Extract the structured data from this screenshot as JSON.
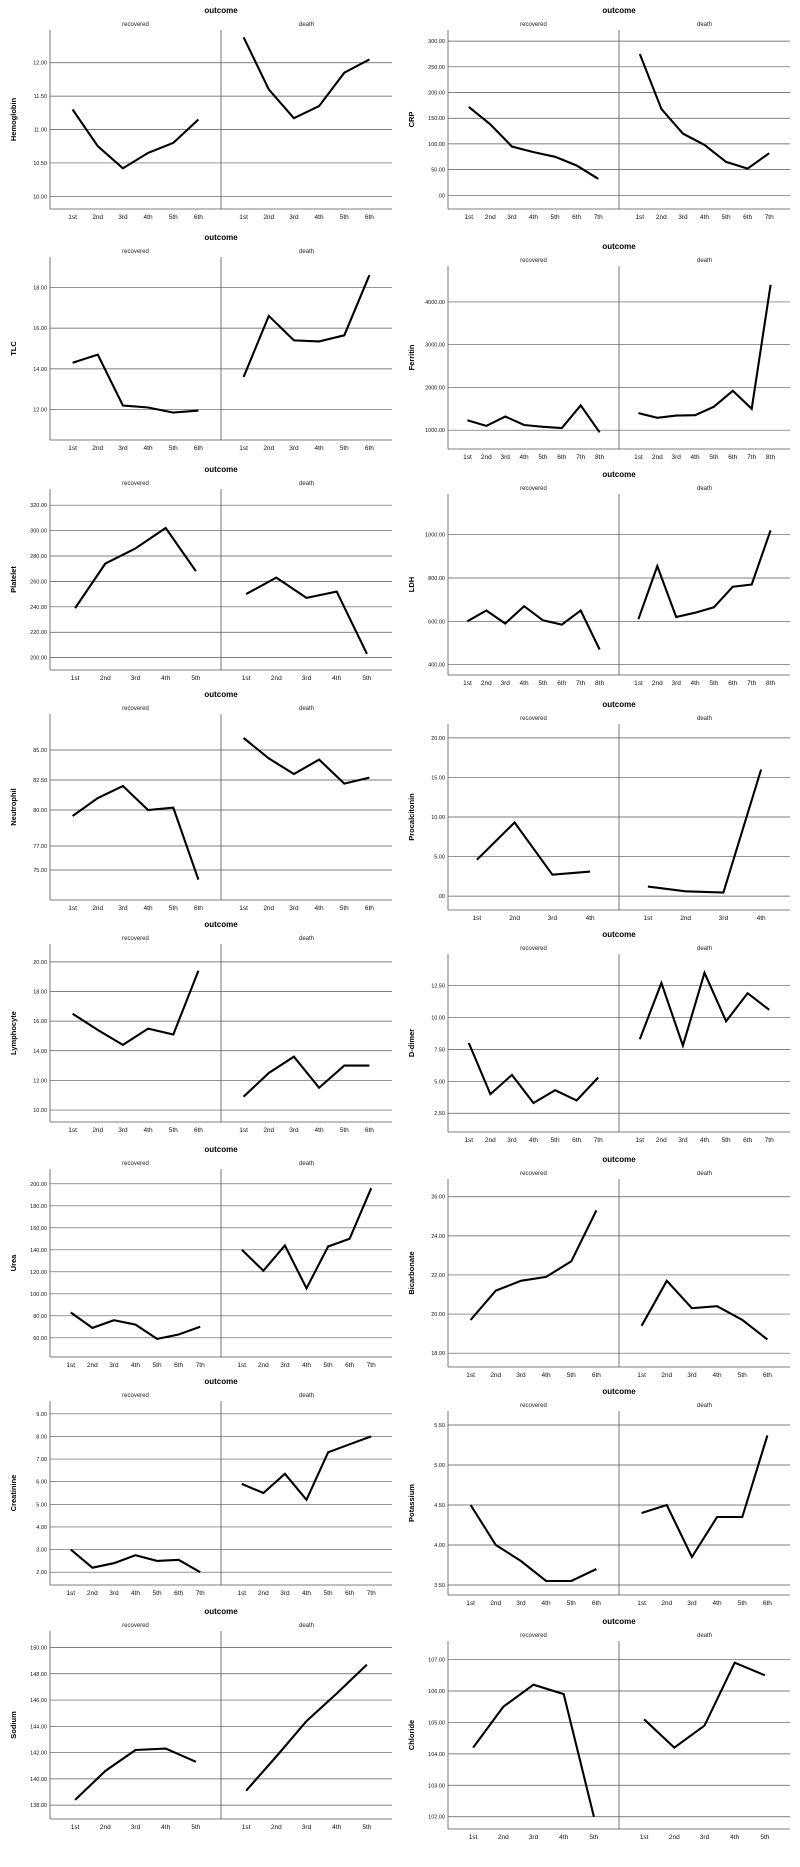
{
  "chart_data": [
    {
      "type": "line",
      "title": "outcome",
      "ylabel": "Hemoglobin",
      "panels": [
        "recovered",
        "death"
      ],
      "categories": [
        "1st",
        "2nd",
        "3rd",
        "4th",
        "5th",
        "6th"
      ],
      "ylim": [
        9.9,
        12.4
      ],
      "yticks": [
        10.0,
        10.5,
        11.0,
        11.5,
        12.0
      ],
      "ytick_labels": [
        "10.00",
        "10.50",
        "11.00",
        "11.50",
        "12.00"
      ],
      "series": [
        {
          "name": "recovered",
          "values": [
            11.3,
            10.75,
            10.42,
            10.65,
            10.8,
            11.15
          ]
        },
        {
          "name": "death",
          "values": [
            12.38,
            11.6,
            11.17,
            11.35,
            11.85,
            12.05
          ]
        }
      ]
    },
    {
      "type": "line",
      "title": "outcome",
      "ylabel": "CRP",
      "panels": [
        "recovered",
        "death"
      ],
      "categories": [
        "1st",
        "2nd",
        "3rd",
        "4th",
        "5th",
        "6th",
        "7th"
      ],
      "ylim": [
        -15,
        310
      ],
      "yticks": [
        0,
        50,
        100,
        150,
        200,
        250,
        300
      ],
      "ytick_labels": [
        ".00",
        "50.00",
        "100.00",
        "150.00",
        "200.00",
        "250.00",
        "300.00"
      ],
      "series": [
        {
          "name": "recovered",
          "values": [
            172,
            138,
            95,
            84,
            75,
            58,
            32
          ]
        },
        {
          "name": "death",
          "values": [
            275,
            168,
            120,
            98,
            65,
            52,
            82
          ]
        }
      ]
    },
    {
      "type": "line",
      "title": "outcome",
      "ylabel": "TLC",
      "panels": [
        "recovered",
        "death"
      ],
      "categories": [
        "1st",
        "2nd",
        "3rd",
        "4th",
        "5th",
        "6th"
      ],
      "ylim": [
        10.8,
        19.2
      ],
      "yticks": [
        12,
        14,
        16,
        18
      ],
      "ytick_labels": [
        "12.00",
        "14.00",
        "16.00",
        "18.00"
      ],
      "series": [
        {
          "name": "recovered",
          "values": [
            14.3,
            14.7,
            12.2,
            12.1,
            11.85,
            11.95
          ]
        },
        {
          "name": "death",
          "values": [
            13.6,
            16.6,
            15.4,
            15.35,
            15.65,
            18.6
          ]
        }
      ]
    },
    {
      "type": "line",
      "title": "outcome",
      "ylabel": "Ferritin",
      "panels": [
        "recovered",
        "death"
      ],
      "categories": [
        "1st",
        "2nd",
        "3rd",
        "4th",
        "5th",
        "6th",
        "7th",
        "8th"
      ],
      "ylim": [
        700,
        4700
      ],
      "yticks": [
        1000,
        2000,
        3000,
        4000
      ],
      "ytick_labels": [
        "1000.00",
        "2000.00",
        "3000.00",
        "4000.00"
      ],
      "series": [
        {
          "name": "recovered",
          "values": [
            1230,
            1100,
            1320,
            1120,
            1080,
            1050,
            1580,
            950
          ]
        },
        {
          "name": "death",
          "values": [
            1400,
            1290,
            1340,
            1350,
            1550,
            1920,
            1500,
            4400
          ]
        }
      ]
    },
    {
      "type": "line",
      "title": "outcome",
      "ylabel": "Platelet",
      "panels": [
        "recovered",
        "death"
      ],
      "categories": [
        "1st",
        "2nd",
        "3rd",
        "4th",
        "5th"
      ],
      "ylim": [
        195,
        328
      ],
      "yticks": [
        200,
        220,
        240,
        260,
        280,
        300,
        320
      ],
      "ytick_labels": [
        "200.00",
        "220.00",
        "240.00",
        "260.00",
        "280.00",
        "300.00",
        "320.00"
      ],
      "series": [
        {
          "name": "recovered",
          "values": [
            239,
            274,
            286,
            302,
            268
          ]
        },
        {
          "name": "death",
          "values": [
            250,
            263,
            247,
            252,
            203
          ]
        }
      ]
    },
    {
      "type": "line",
      "title": "outcome",
      "ylabel": "LDH",
      "panels": [
        "recovered",
        "death"
      ],
      "categories": [
        "1st",
        "2nd",
        "3rd",
        "4th",
        "5th",
        "6th",
        "7th",
        "8th"
      ],
      "ylim": [
        380,
        1160
      ],
      "yticks": [
        400,
        600,
        800,
        1000
      ],
      "ytick_labels": [
        "400.00",
        "600.00",
        "800.00",
        "1000.00"
      ],
      "series": [
        {
          "name": "recovered",
          "values": [
            600,
            650,
            590,
            670,
            605,
            585,
            650,
            470
          ]
        },
        {
          "name": "death",
          "values": [
            610,
            855,
            620,
            640,
            665,
            760,
            770,
            1020
          ]
        }
      ]
    },
    {
      "type": "line",
      "title": "outcome",
      "ylabel": "Neutrophil",
      "panels": [
        "recovered",
        "death"
      ],
      "categories": [
        "1st",
        "2nd",
        "3rd",
        "4th",
        "5th",
        "6th"
      ],
      "ylim": [
        73,
        87.5
      ],
      "yticks": [
        75,
        77,
        80,
        82.5,
        85
      ],
      "ytick_labels": [
        "75.00",
        "77.00",
        "80.00",
        "82.50",
        "85.00"
      ],
      "series": [
        {
          "name": "recovered",
          "values": [
            79.5,
            81.0,
            82.0,
            80.0,
            80.2,
            74.2
          ]
        },
        {
          "name": "death",
          "values": [
            86.0,
            84.3,
            83.0,
            84.2,
            82.2,
            82.7
          ]
        }
      ]
    },
    {
      "type": "line",
      "title": "outcome",
      "ylabel": "Procalcitonin",
      "panels": [
        "recovered",
        "death"
      ],
      "categories": [
        "1st",
        "2nd",
        "3rd",
        "4th"
      ],
      "ylim": [
        -1,
        21
      ],
      "yticks": [
        0,
        5,
        10,
        15,
        20
      ],
      "ytick_labels": [
        ".00",
        "5.00",
        "10.00",
        "15.00",
        "20.00"
      ],
      "series": [
        {
          "name": "recovered",
          "values": [
            4.6,
            9.3,
            2.7,
            3.1
          ]
        },
        {
          "name": "death",
          "values": [
            1.2,
            0.6,
            0.45,
            16.0
          ]
        }
      ]
    },
    {
      "type": "line",
      "title": "outcome",
      "ylabel": "Lymphocyte",
      "panels": [
        "recovered",
        "death"
      ],
      "categories": [
        "1st",
        "2nd",
        "3rd",
        "4th",
        "5th",
        "6th"
      ],
      "ylim": [
        9.6,
        20.8
      ],
      "yticks": [
        10,
        12,
        14,
        16,
        18,
        20
      ],
      "ytick_labels": [
        "10.00",
        "12.00",
        "14.00",
        "16.00",
        "18.00",
        "20.00"
      ],
      "series": [
        {
          "name": "recovered",
          "values": [
            16.5,
            15.4,
            14.4,
            15.5,
            15.1,
            19.4
          ]
        },
        {
          "name": "death",
          "values": [
            10.9,
            12.5,
            13.6,
            11.5,
            13.0,
            13.0
          ]
        }
      ]
    },
    {
      "type": "line",
      "title": "outcome",
      "ylabel": "D-dimer",
      "panels": [
        "recovered",
        "death"
      ],
      "categories": [
        "1st",
        "2nd",
        "3rd",
        "4th",
        "5th",
        "6th",
        "7th"
      ],
      "ylim": [
        1.5,
        14.5
      ],
      "yticks": [
        2.5,
        5,
        7.5,
        10,
        12.5
      ],
      "ytick_labels": [
        "2.50",
        "5.00",
        "7.50",
        "10.00",
        "12.50"
      ],
      "series": [
        {
          "name": "recovered",
          "values": [
            8.0,
            4.0,
            5.5,
            3.3,
            4.3,
            3.5,
            5.3
          ]
        },
        {
          "name": "death",
          "values": [
            8.3,
            12.7,
            7.8,
            13.5,
            9.7,
            11.9,
            10.6
          ]
        }
      ]
    },
    {
      "type": "line",
      "title": "outcome",
      "ylabel": "Urea",
      "panels": [
        "recovered",
        "death"
      ],
      "categories": [
        "1st",
        "2nd",
        "3rd",
        "4th",
        "5th",
        "6th",
        "7th"
      ],
      "ylim": [
        48,
        208
      ],
      "yticks": [
        60,
        80,
        100,
        120,
        140,
        160,
        180,
        200
      ],
      "ytick_labels": [
        "60.00",
        "80.00",
        "100.00",
        "120.00",
        "140.00",
        "160.00",
        "180.00",
        "200.00"
      ],
      "series": [
        {
          "name": "recovered",
          "values": [
            83,
            69,
            76,
            72,
            59,
            63,
            70
          ]
        },
        {
          "name": "death",
          "values": [
            140,
            121,
            144,
            105,
            143,
            150,
            196
          ]
        }
      ]
    },
    {
      "type": "line",
      "title": "outcome",
      "ylabel": "Bicarbonate",
      "panels": [
        "recovered",
        "death"
      ],
      "categories": [
        "1st",
        "2nd",
        "3rd",
        "4th",
        "5th",
        "6th"
      ],
      "ylim": [
        17.6,
        26.6
      ],
      "yticks": [
        18,
        20,
        22,
        24,
        26
      ],
      "ytick_labels": [
        "18.00",
        "20.00",
        "22.00",
        "24.00",
        "26.00"
      ],
      "series": [
        {
          "name": "recovered",
          "values": [
            19.7,
            21.2,
            21.7,
            21.9,
            22.7,
            25.3
          ]
        },
        {
          "name": "death",
          "values": [
            19.4,
            21.7,
            20.3,
            20.4,
            19.7,
            18.7
          ]
        }
      ]
    },
    {
      "type": "line",
      "title": "outcome",
      "ylabel": "Creatinine",
      "panels": [
        "recovered",
        "death"
      ],
      "categories": [
        "1st",
        "2nd",
        "3rd",
        "4th",
        "5th",
        "6th",
        "7th"
      ],
      "ylim": [
        1.7,
        9.3
      ],
      "yticks": [
        2,
        3,
        4,
        5,
        6,
        7,
        8,
        9
      ],
      "ytick_labels": [
        "2.00",
        "3.00",
        "4.00",
        "5.00",
        "6.00",
        "7.00",
        "8.00",
        "9.00"
      ],
      "series": [
        {
          "name": "recovered",
          "values": [
            3.0,
            2.2,
            2.4,
            2.75,
            2.5,
            2.55,
            2.0
          ]
        },
        {
          "name": "death",
          "values": [
            5.9,
            5.5,
            6.35,
            5.2,
            7.3,
            7.65,
            8.0
          ]
        }
      ]
    },
    {
      "type": "line",
      "title": "outcome",
      "ylabel": "Potassium",
      "panels": [
        "recovered",
        "death"
      ],
      "categories": [
        "1st",
        "2nd",
        "3rd",
        "4th",
        "5th",
        "6th"
      ],
      "ylim": [
        3.45,
        5.6
      ],
      "yticks": [
        3.5,
        4.0,
        4.5,
        5.0,
        5.5
      ],
      "ytick_labels": [
        "3.50",
        "4.00",
        "4.50",
        "5.00",
        "5.50"
      ],
      "series": [
        {
          "name": "recovered",
          "values": [
            4.5,
            4.0,
            3.8,
            3.55,
            3.55,
            3.7
          ]
        },
        {
          "name": "death",
          "values": [
            4.4,
            4.5,
            3.85,
            4.35,
            4.35,
            5.37
          ]
        }
      ]
    },
    {
      "type": "line",
      "title": "outcome",
      "ylabel": "Sodium",
      "panels": [
        "recovered",
        "death"
      ],
      "categories": [
        "1st",
        "2nd",
        "3rd",
        "4th",
        "5th"
      ],
      "ylim": [
        137.4,
        150.8
      ],
      "yticks": [
        138,
        140,
        142,
        144,
        146,
        148,
        150
      ],
      "ytick_labels": [
        "138.00",
        "140.00",
        "142.00",
        "144.00",
        "146.00",
        "148.00",
        "150.00"
      ],
      "series": [
        {
          "name": "recovered",
          "values": [
            138.4,
            140.6,
            142.2,
            142.3,
            141.3
          ]
        },
        {
          "name": "death",
          "values": [
            139.1,
            141.7,
            144.4,
            146.5,
            148.7
          ]
        }
      ]
    },
    {
      "type": "line",
      "title": "outcome",
      "ylabel": "Chloride",
      "panels": [
        "recovered",
        "death"
      ],
      "categories": [
        "1st",
        "2nd",
        "3rd",
        "4th",
        "5th"
      ],
      "ylim": [
        101.8,
        107.4
      ],
      "yticks": [
        102,
        103,
        104,
        105,
        106,
        107
      ],
      "ytick_labels": [
        "102.00",
        "103.00",
        "104.00",
        "105.00",
        "106.00",
        "107.00"
      ],
      "series": [
        {
          "name": "recovered",
          "values": [
            104.2,
            105.5,
            106.2,
            105.9,
            102.0
          ]
        },
        {
          "name": "death",
          "values": [
            105.1,
            104.2,
            104.9,
            106.9,
            106.5
          ]
        }
      ]
    }
  ]
}
